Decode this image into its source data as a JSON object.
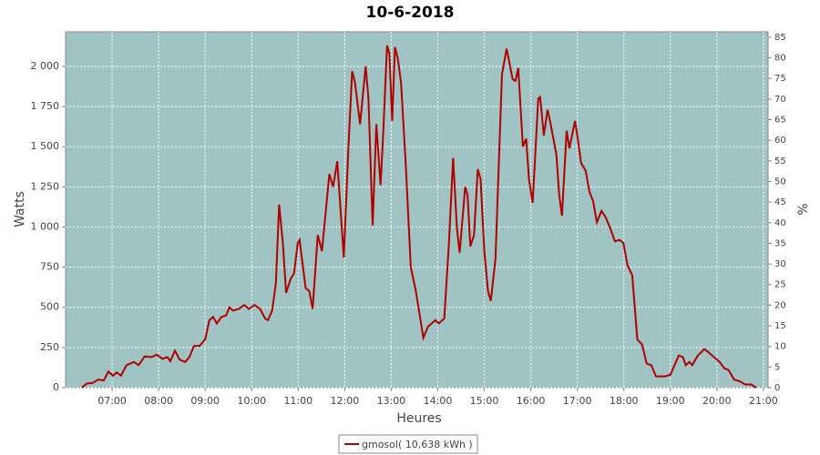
{
  "chart_data": {
    "type": "line",
    "title": "10-6-2018",
    "x_label": "Heures",
    "y_label": "Watts",
    "y2_label": "%",
    "xlim": [
      6,
      21.1
    ],
    "ylim": [
      0,
      2215
    ],
    "y2lim": [
      0,
      86.3
    ],
    "xticks": [
      {
        "value": 7,
        "label": "07:00"
      },
      {
        "value": 8,
        "label": "08:00"
      },
      {
        "value": 9,
        "label": "09:00"
      },
      {
        "value": 10,
        "label": "10:00"
      },
      {
        "value": 11,
        "label": "11:00"
      },
      {
        "value": 12,
        "label": "12:00"
      },
      {
        "value": 13,
        "label": "13:00"
      },
      {
        "value": 14,
        "label": "14:00"
      },
      {
        "value": 15,
        "label": "15:00"
      },
      {
        "value": 16,
        "label": "16:00"
      },
      {
        "value": 17,
        "label": "17:00"
      },
      {
        "value": 18,
        "label": "18:00"
      },
      {
        "value": 19,
        "label": "19:00"
      },
      {
        "value": 20,
        "label": "20:00"
      },
      {
        "value": 21,
        "label": "21:00"
      }
    ],
    "yticks": [
      0,
      250,
      500,
      750,
      {
        "value": 1000,
        "label": "1 000"
      },
      {
        "value": 1250,
        "label": "1 250"
      },
      {
        "value": 1500,
        "label": "1 500"
      },
      {
        "value": 1750,
        "label": "1 750"
      },
      {
        "value": 2000,
        "label": "2 000"
      }
    ],
    "y2ticks": [
      0,
      5,
      10,
      15,
      20,
      25,
      30,
      35,
      40,
      45,
      50,
      55,
      60,
      65,
      70,
      75,
      80,
      85
    ],
    "grid": true,
    "legend": "bottom",
    "plot_background": "#a0c4c4",
    "x": [
      6.35,
      6.45,
      6.59,
      6.7,
      6.82,
      6.92,
      7.02,
      7.1,
      7.19,
      7.31,
      7.47,
      7.57,
      7.7,
      7.84,
      7.96,
      8.08,
      8.19,
      8.25,
      8.35,
      8.45,
      8.57,
      8.66,
      8.76,
      8.88,
      9.0,
      9.09,
      9.17,
      9.25,
      9.35,
      9.45,
      9.52,
      9.6,
      9.72,
      9.84,
      9.94,
      10.06,
      10.18,
      10.29,
      10.35,
      10.44,
      10.52,
      10.59,
      10.67,
      10.74,
      10.84,
      10.91,
      10.99,
      11.03,
      11.09,
      11.16,
      11.24,
      11.31,
      11.42,
      11.51,
      11.67,
      11.75,
      11.84,
      11.98,
      12.08,
      12.16,
      12.22,
      12.33,
      12.45,
      12.51,
      12.6,
      12.68,
      12.77,
      12.83,
      12.91,
      12.96,
      13.02,
      13.08,
      13.14,
      13.21,
      13.31,
      13.42,
      13.53,
      13.64,
      13.69,
      13.79,
      13.95,
      14.02,
      14.14,
      14.24,
      14.33,
      14.41,
      14.47,
      14.59,
      14.64,
      14.7,
      14.78,
      14.86,
      14.92,
      15.0,
      15.08,
      15.14,
      15.24,
      15.38,
      15.48,
      15.61,
      15.67,
      15.73,
      15.83,
      15.9,
      15.96,
      16.04,
      16.16,
      16.2,
      16.28,
      16.36,
      16.42,
      16.55,
      16.61,
      16.67,
      16.77,
      16.83,
      16.95,
      17.0,
      17.08,
      17.18,
      17.26,
      17.34,
      17.42,
      17.52,
      17.61,
      17.71,
      17.81,
      17.91,
      17.99,
      18.08,
      18.18,
      18.29,
      18.39,
      18.49,
      18.59,
      18.69,
      18.88,
      19.0,
      19.18,
      19.27,
      19.33,
      19.41,
      19.47,
      19.59,
      19.73,
      19.82,
      20.06,
      20.16,
      20.25,
      20.37,
      20.49,
      20.61,
      20.74,
      20.84
    ],
    "series": [
      {
        "name": "gmosol( 10,638 kWh )",
        "color": "#b00000",
        "values": [
          0,
          25,
          30,
          50,
          45,
          100,
          75,
          95,
          75,
          140,
          160,
          140,
          195,
          190,
          205,
          180,
          190,
          165,
          230,
          175,
          160,
          190,
          260,
          260,
          300,
          420,
          440,
          400,
          440,
          450,
          500,
          480,
          490,
          515,
          490,
          515,
          490,
          430,
          420,
          480,
          650,
          1140,
          900,
          590,
          680,
          710,
          900,
          920,
          780,
          620,
          600,
          490,
          950,
          850,
          1330,
          1250,
          1410,
          810,
          1500,
          1970,
          1900,
          1640,
          2000,
          1800,
          1010,
          1640,
          1260,
          1600,
          2130,
          2080,
          1660,
          2120,
          2050,
          1900,
          1400,
          750,
          600,
          400,
          310,
          380,
          420,
          400,
          430,
          900,
          1430,
          1000,
          840,
          1250,
          1200,
          880,
          950,
          1360,
          1300,
          850,
          600,
          540,
          800,
          1950,
          2110,
          1920,
          1910,
          1990,
          1500,
          1550,
          1300,
          1150,
          1800,
          1810,
          1570,
          1730,
          1650,
          1450,
          1200,
          1070,
          1600,
          1490,
          1660,
          1570,
          1400,
          1350,
          1220,
          1160,
          1030,
          1100,
          1060,
          990,
          910,
          920,
          900,
          760,
          700,
          300,
          270,
          150,
          140,
          70,
          70,
          80,
          200,
          190,
          140,
          160,
          140,
          200,
          240,
          220,
          160,
          120,
          110,
          50,
          40,
          20,
          20,
          0
        ]
      }
    ]
  }
}
